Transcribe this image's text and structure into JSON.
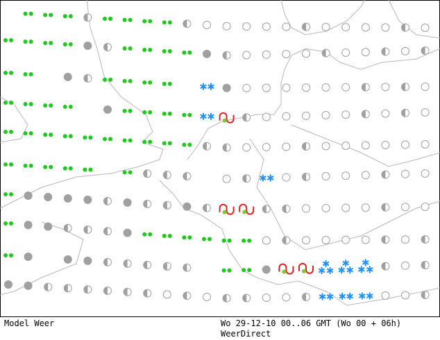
{
  "footer": {
    "left": "Model Weer",
    "timestamp": "Wo 29-12-10 00..06 GMT (Wo 00 + 06h)",
    "source": "WeerDirect"
  }
}
